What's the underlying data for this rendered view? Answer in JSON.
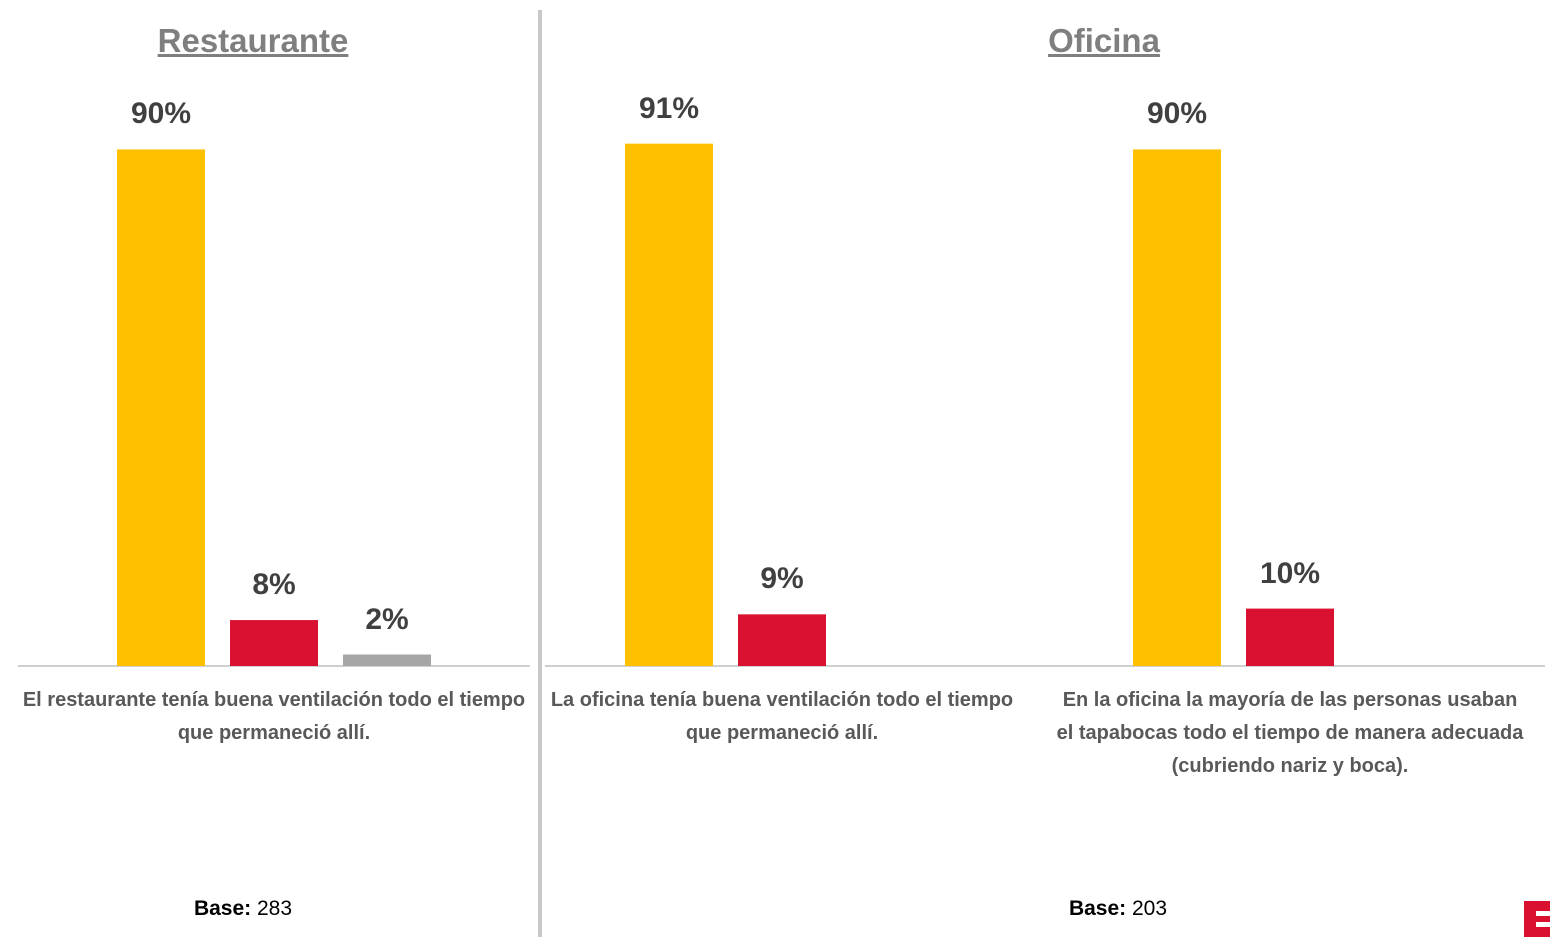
{
  "chart_data": [
    {
      "type": "bar",
      "title": "Restaurante",
      "categories": [
        "El restaurante tenía buena ventilación todo el tiempo que permaneció allí."
      ],
      "series": [
        {
          "color": "#FFC000",
          "values": [
            90
          ],
          "value_labels": [
            "90%"
          ]
        },
        {
          "color": "#D9102F",
          "values": [
            8
          ],
          "value_labels": [
            "8%"
          ]
        },
        {
          "color": "#A6A6A6",
          "values": [
            2
          ],
          "value_labels": [
            "2%"
          ]
        }
      ],
      "base_label": "Base:",
      "base": 283
    },
    {
      "type": "bar",
      "title": "Oficina",
      "categories": [
        "La oficina tenía buena ventilación todo el tiempo que permaneció allí.",
        "En la oficina la mayoría de las personas usaban el tapabocas todo el tiempo de manera adecuada (cubriendo nariz y boca)."
      ],
      "series": [
        {
          "color": "#FFC000",
          "values": [
            91,
            90
          ],
          "value_labels": [
            "91%",
            "90%"
          ]
        },
        {
          "color": "#D9102F",
          "values": [
            9,
            10
          ],
          "value_labels": [
            "9%",
            "10%"
          ]
        }
      ],
      "base_label": "Base:",
      "base": 203
    }
  ]
}
